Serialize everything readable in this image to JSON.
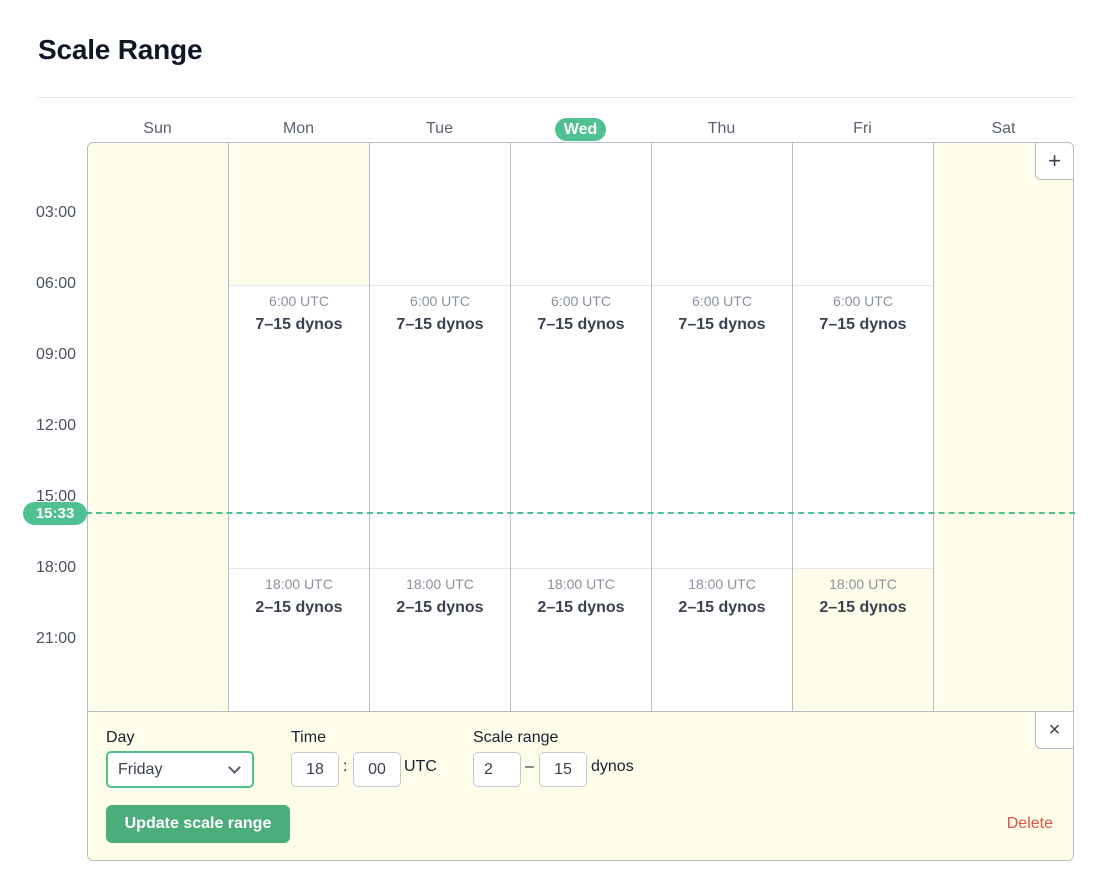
{
  "page": {
    "title": "Scale Range"
  },
  "calendar": {
    "days": [
      "Sun",
      "Mon",
      "Tue",
      "Wed",
      "Thu",
      "Fri",
      "Sat"
    ],
    "today_index": 3,
    "hour_labels": [
      "03:00",
      "06:00",
      "09:00",
      "12:00",
      "15:00",
      "18:00",
      "21:00"
    ],
    "current_time": "15:33",
    "blocks": {
      "mon": [
        {
          "time": "6:00 UTC",
          "range": "7–15 dynos"
        },
        {
          "time": "18:00 UTC",
          "range": "2–15 dynos"
        }
      ],
      "tue": [
        {
          "time": "6:00 UTC",
          "range": "7–15 dynos"
        },
        {
          "time": "18:00 UTC",
          "range": "2–15 dynos"
        }
      ],
      "wed": [
        {
          "time": "6:00 UTC",
          "range": "7–15 dynos"
        },
        {
          "time": "18:00 UTC",
          "range": "2–15 dynos"
        }
      ],
      "thu": [
        {
          "time": "6:00 UTC",
          "range": "7–15 dynos"
        },
        {
          "time": "18:00 UTC",
          "range": "2–15 dynos"
        }
      ],
      "fri": [
        {
          "time": "6:00 UTC",
          "range": "7–15 dynos"
        },
        {
          "time": "18:00 UTC",
          "range": "2–15 dynos"
        }
      ]
    },
    "add_label": "+"
  },
  "editor": {
    "close_label": "×",
    "day_label": "Day",
    "day_value": "Friday",
    "time_label": "Time",
    "hour_value": "18",
    "time_separator": ":",
    "minute_value": "00",
    "time_unit": "UTC",
    "range_label": "Scale range",
    "min_value": "2",
    "range_separator": "–",
    "max_value": "15",
    "range_unit": "dynos",
    "update_label": "Update scale range",
    "delete_label": "Delete"
  },
  "colors": {
    "accent": "#4fc190",
    "button": "#4aad7a",
    "highlight": "#fefde9",
    "danger": "#e05145"
  }
}
